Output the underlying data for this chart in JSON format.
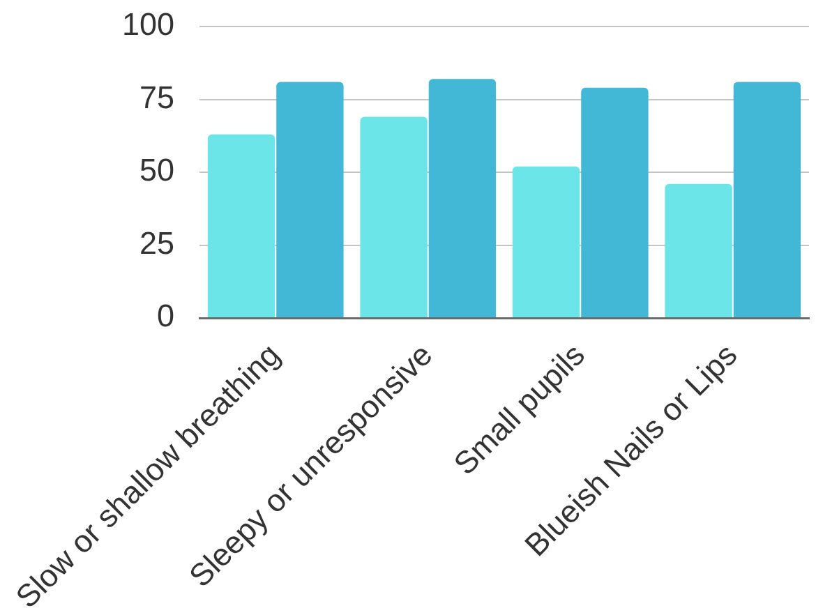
{
  "chart_data": {
    "type": "bar",
    "categories": [
      "Slow or shallow breathing",
      "Sleepy or unresponsive",
      "Small pupils",
      "Blueish Nails or Lips"
    ],
    "series": [
      {
        "color": "#6ce5e8",
        "values": [
          63,
          69,
          52,
          46
        ]
      },
      {
        "color": "#42b7d6",
        "values": [
          81,
          82,
          79,
          81
        ]
      }
    ],
    "ylim": [
      0,
      100
    ],
    "yticks": [
      0,
      25,
      50,
      75,
      100
    ],
    "grid": "y"
  }
}
